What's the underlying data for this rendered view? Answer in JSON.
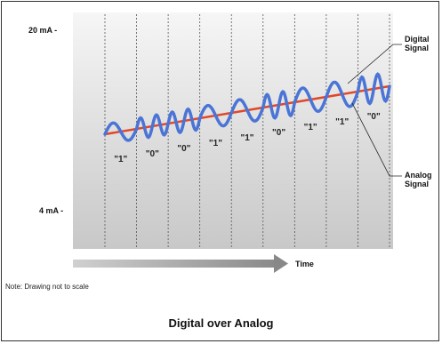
{
  "y_axis": {
    "top_label": "20 mA -",
    "bottom_label": "4 mA -"
  },
  "time_label": "Time",
  "digital_signal_label": [
    "Digital",
    "Signal"
  ],
  "analog_signal_label": [
    "Analog",
    "Signal"
  ],
  "bits": [
    "\"1\"",
    "\"0\"",
    "\"0\"",
    "\"1\"",
    "\"1\"",
    "\"0\"",
    "\"1\"",
    "\"1\"",
    "\"0\""
  ],
  "note": "Note: Drawing not to scale",
  "caption": "Digital over Analog",
  "colors": {
    "analog": "#e0482a",
    "digital": "#4a74d6",
    "plot_bg_top": "#f6f6f6",
    "plot_bg_bottom": "#c4c4c4",
    "arrow": "#9a9a9a"
  }
}
